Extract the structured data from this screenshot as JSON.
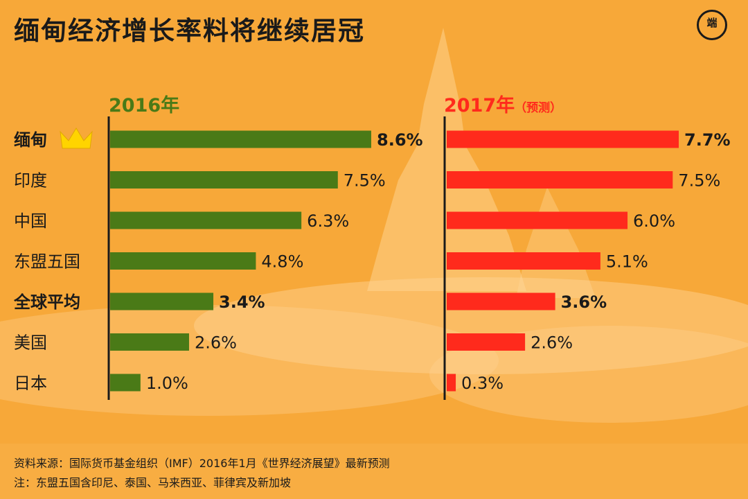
{
  "title": "缅甸经济增长率料将继续居冠",
  "logo_text": "端",
  "colors": {
    "green": "#4a7a17",
    "red": "#ff2a1c",
    "text": "#1a1a1a",
    "crown": "#ffd400"
  },
  "icons": {
    "crown": "crown-icon"
  },
  "header_2016": "2016年",
  "header_2017": "2017年",
  "header_2017_note": "（预测）",
  "chart_data": {
    "type": "bar",
    "orientation": "horizontal",
    "title": "缅甸经济增长率料将继续居冠",
    "xlabel": "",
    "ylabel": "",
    "unit": "%",
    "categories": [
      "缅甸",
      "印度",
      "中国",
      "东盟五国",
      "全球平均",
      "美国",
      "日本"
    ],
    "highlight": [
      "缅甸",
      "全球平均"
    ],
    "grid": false,
    "series": [
      {
        "name": "2016年",
        "values": [
          8.6,
          7.5,
          6.3,
          4.8,
          3.4,
          2.6,
          1.0
        ],
        "color": "#4a7a17",
        "labels": [
          "8.6%",
          "7.5%",
          "6.3%",
          "4.8%",
          "3.4%",
          "2.6%",
          "1.0%"
        ]
      },
      {
        "name": "2017年（预测）",
        "values": [
          7.7,
          7.5,
          6.0,
          5.1,
          3.6,
          2.6,
          0.3
        ],
        "color": "#ff2a1c",
        "labels": [
          "7.7%",
          "7.5%",
          "6.0%",
          "5.1%",
          "3.6%",
          "2.6%",
          "0.3%"
        ]
      }
    ]
  },
  "footer": {
    "source": "资料来源：国际货币基金组织（IMF）2016年1月《世界经济展望》最新预测",
    "note": "注：东盟五国含印尼、泰国、马来西亚、菲律宾及新加坡"
  }
}
